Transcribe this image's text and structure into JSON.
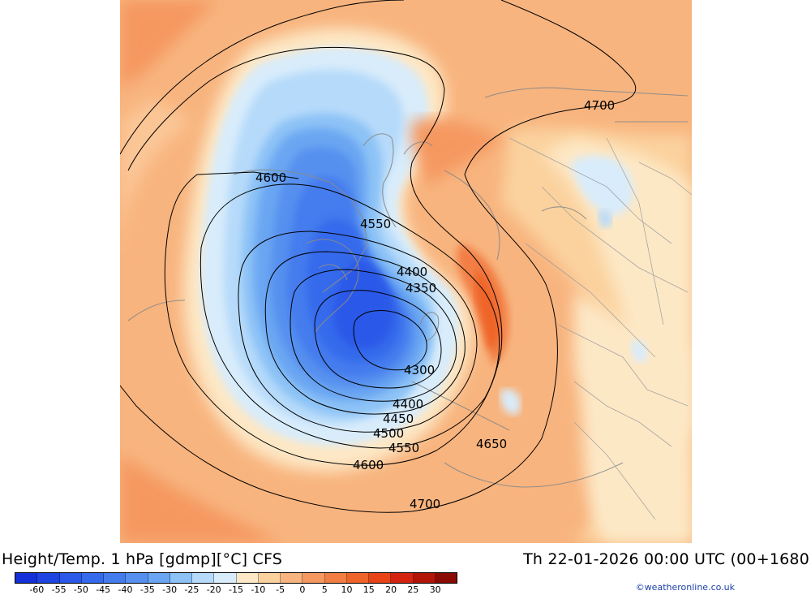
{
  "title": "Height/Temp. 1 hPa [gdmp][°C] CFS",
  "valid_time": "Th 22-01-2026 00:00 UTC (00+1680",
  "copyright": "©weatheronline.co.uk",
  "contour_labels": [
    "4700",
    "4600",
    "4550",
    "4400",
    "4350",
    "4300",
    "4400",
    "4450",
    "4500",
    "4550",
    "4600",
    "4650",
    "4700"
  ],
  "colorbar": {
    "ticks": [
      "-60",
      "-55",
      "-50",
      "-45",
      "-40",
      "-35",
      "-30",
      "-25",
      "-20",
      "-15",
      "-10",
      "-5",
      "0",
      "5",
      "10",
      "15",
      "20",
      "25",
      "30"
    ],
    "colors": [
      "#1530d8",
      "#1e44e2",
      "#2a58e8",
      "#356aec",
      "#447cee",
      "#5690ef",
      "#6aa6f2",
      "#8cc2f6",
      "#b6dafa",
      "#d8ecfb",
      "#fde8c6",
      "#fbd29e",
      "#f8b47e",
      "#f59860",
      "#f27e44",
      "#ef6428",
      "#e84418",
      "#d42410",
      "#b31408",
      "#8a0a04"
    ]
  }
}
